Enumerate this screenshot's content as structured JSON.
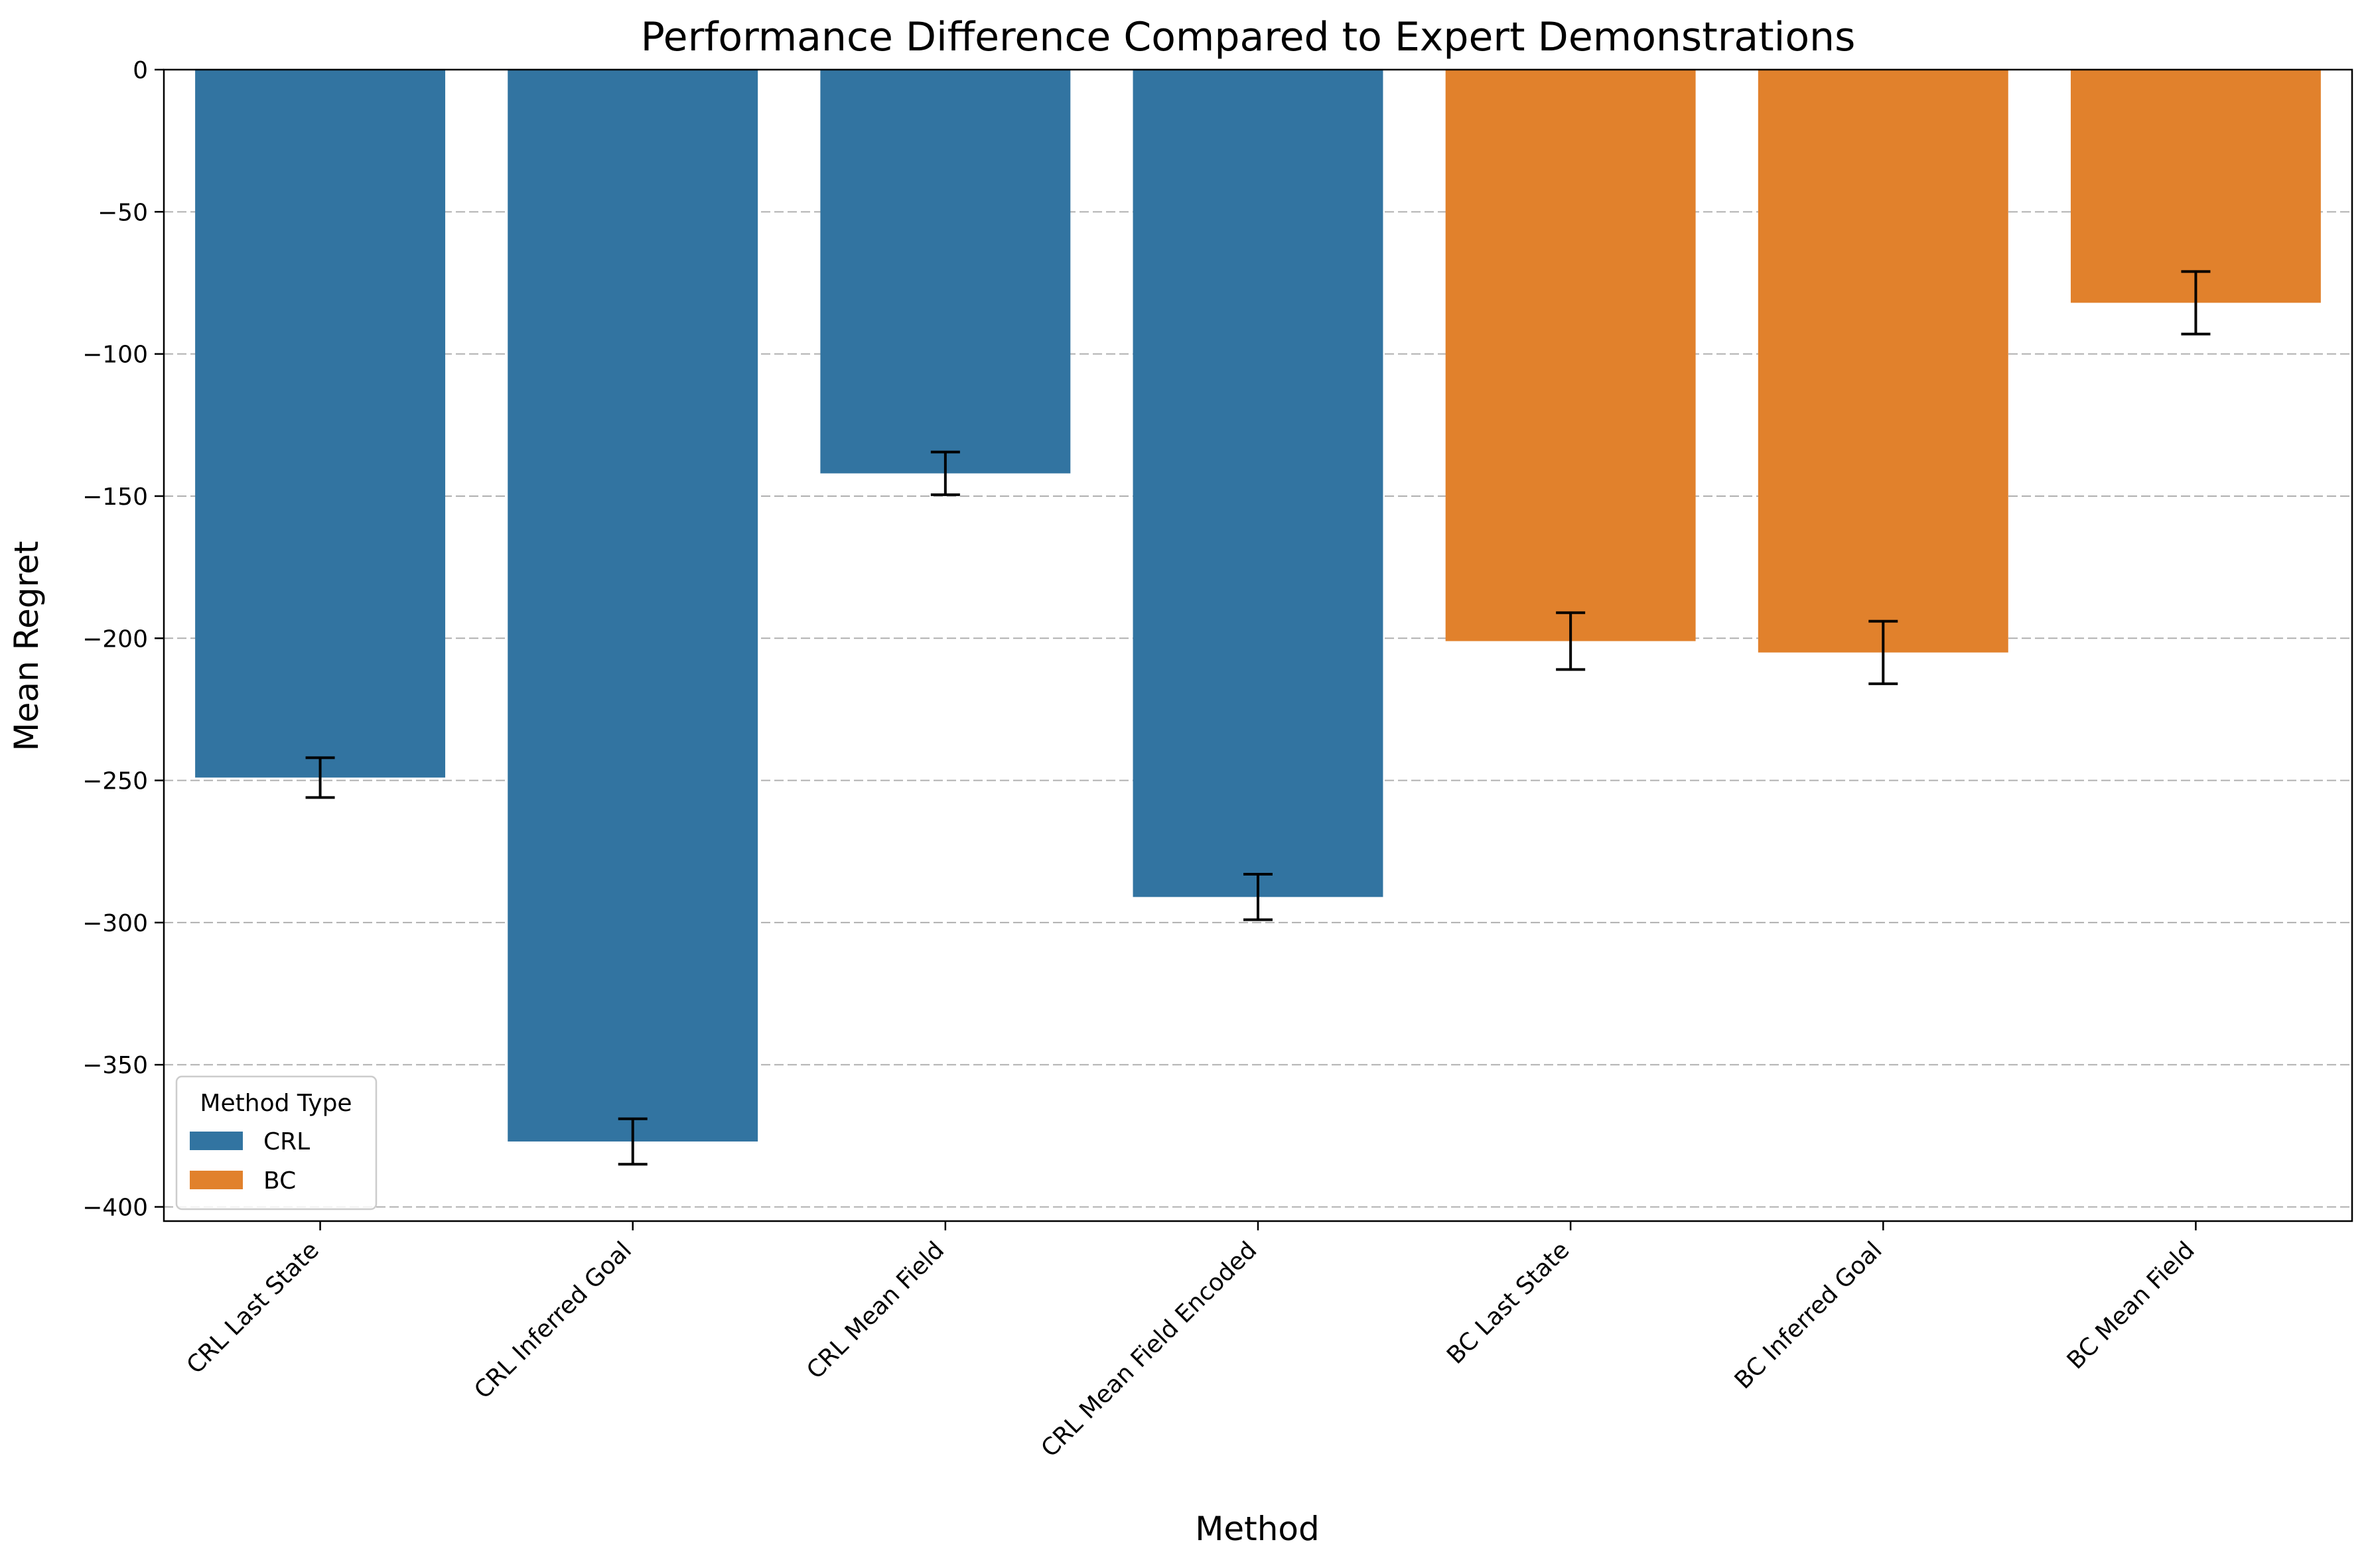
{
  "chart_data": {
    "type": "bar",
    "title": "Performance Difference Compared to Expert Demonstrations",
    "xlabel": "Method",
    "ylabel": "Mean Regret",
    "ylim": [
      -405,
      0
    ],
    "yticks": [
      0,
      -50,
      -100,
      -150,
      -200,
      -250,
      -300,
      -350,
      -400
    ],
    "ytick_labels": [
      "0",
      "−50",
      "−100",
      "−150",
      "−200",
      "−250",
      "−300",
      "−350",
      "−400"
    ],
    "grid": "y-dashed",
    "categories": [
      "CRL Last State",
      "CRL Inferred Goal",
      "CRL Mean Field",
      "CRL Mean Field Encoded",
      "BC Last State",
      "BC Inferred Goal",
      "BC Mean Field"
    ],
    "values": [
      -249,
      -377,
      -142,
      -291,
      -201,
      -205,
      -82
    ],
    "errors": [
      7,
      8,
      7.5,
      8,
      10,
      11,
      11
    ],
    "groups": [
      "CRL",
      "CRL",
      "CRL",
      "CRL",
      "BC",
      "BC",
      "BC"
    ],
    "legend": {
      "title": "Method Type",
      "placement": "lower-left",
      "entries": [
        {
          "name": "CRL",
          "color": "#3274a1"
        },
        {
          "name": "BC",
          "color": "#e1812c"
        }
      ]
    },
    "colors": {
      "CRL": "#3274a1",
      "BC": "#e1812c"
    }
  }
}
